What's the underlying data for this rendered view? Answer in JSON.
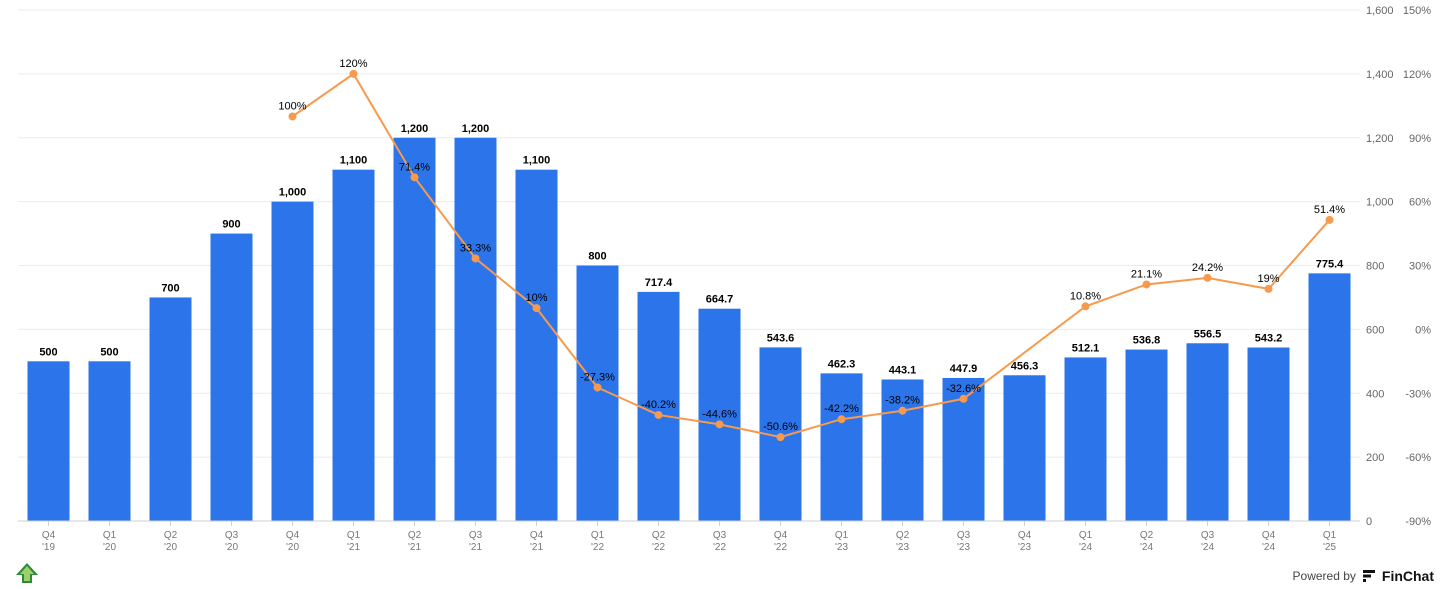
{
  "chart_data": {
    "type": "bar",
    "categories": [
      [
        "Q4",
        "'19"
      ],
      [
        "Q1",
        "'20"
      ],
      [
        "Q2",
        "'20"
      ],
      [
        "Q3",
        "'20"
      ],
      [
        "Q4",
        "'20"
      ],
      [
        "Q1",
        "'21"
      ],
      [
        "Q2",
        "'21"
      ],
      [
        "Q3",
        "'21"
      ],
      [
        "Q4",
        "'21"
      ],
      [
        "Q1",
        "'22"
      ],
      [
        "Q2",
        "'22"
      ],
      [
        "Q3",
        "'22"
      ],
      [
        "Q4",
        "'22"
      ],
      [
        "Q1",
        "'23"
      ],
      [
        "Q2",
        "'23"
      ],
      [
        "Q3",
        "'23"
      ],
      [
        "Q4",
        "'23"
      ],
      [
        "Q1",
        "'24"
      ],
      [
        "Q2",
        "'24"
      ],
      [
        "Q3",
        "'24"
      ],
      [
        "Q4",
        "'24"
      ],
      [
        "Q1",
        "'25"
      ]
    ],
    "series": [
      {
        "type": "bar",
        "axis": "left",
        "color": "#2B74EA",
        "values": [
          500,
          500,
          700,
          900,
          1000,
          1100,
          1200,
          1200,
          1100,
          800,
          717.4,
          664.7,
          543.6,
          462.3,
          443.1,
          447.9,
          456.3,
          512.1,
          536.8,
          556.5,
          543.2,
          775.4
        ],
        "labels": [
          "500",
          "500",
          "700",
          "900",
          "1,000",
          "1,100",
          "1,200",
          "1,200",
          "1,100",
          "800",
          "717.4",
          "664.7",
          "543.6",
          "462.3",
          "443.1",
          "447.9",
          "456.3",
          "512.1",
          "536.8",
          "556.5",
          "543.2",
          "775.4"
        ]
      },
      {
        "type": "line",
        "axis": "right",
        "color": "#F79A4D",
        "values": [
          null,
          null,
          null,
          null,
          100,
          120,
          71.4,
          33.3,
          10,
          -27.3,
          -40.2,
          -44.6,
          -50.6,
          -42.2,
          -38.2,
          -32.6,
          null,
          10.8,
          21.1,
          24.2,
          19,
          51.4
        ],
        "labels": [
          null,
          null,
          null,
          null,
          "100%",
          "120%",
          "71.4%",
          "33.3%",
          "10%",
          "-27.3%",
          "-40.2%",
          "-44.6%",
          "-50.6%",
          "-42.2%",
          "-38.2%",
          "-32.6%",
          null,
          "10.8%",
          "21.1%",
          "24.2%",
          "19%",
          "51.4%"
        ]
      }
    ],
    "y_left": {
      "min": 0,
      "max": 1600,
      "ticks": [
        0,
        200,
        400,
        600,
        800,
        1000,
        1200,
        1400,
        1600
      ],
      "tick_labels": [
        "0",
        "200",
        "400",
        "600",
        "800",
        "1,000",
        "1,200",
        "1,400",
        "1,600"
      ]
    },
    "y_right": {
      "min": -90,
      "max": 150,
      "ticks": [
        -90,
        -60,
        -30,
        0,
        30,
        60,
        90,
        120,
        150
      ],
      "tick_labels": [
        "-90%",
        "-60%",
        "-30%",
        "0%",
        "30%",
        "60%",
        "90%",
        "120%",
        "150%"
      ]
    },
    "grid": true
  },
  "footer": {
    "powered_by": "Powered by",
    "brand": "FinChat"
  }
}
